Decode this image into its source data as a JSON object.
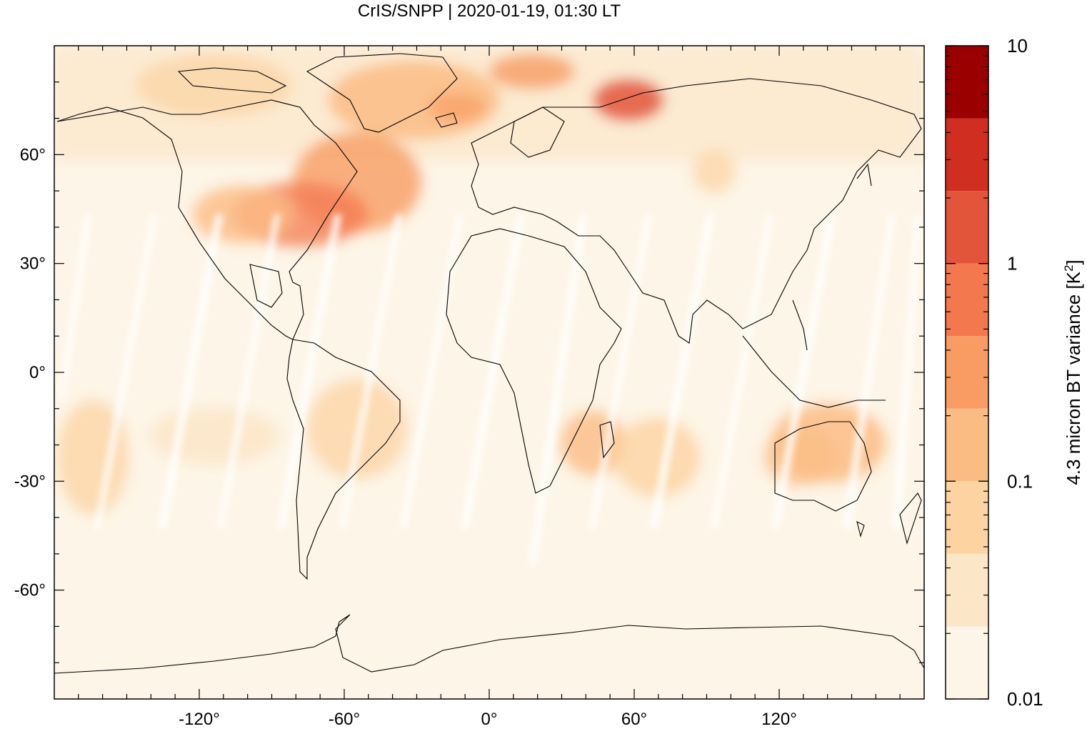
{
  "title": "CrIS/SNPP | 2020-01-19, 01:30 LT",
  "map": {
    "projection": "equirectangular",
    "lon_range": [
      -180,
      180
    ],
    "lat_range": [
      -90,
      90
    ],
    "x_ticks": [
      {
        "value": -120,
        "label": "-120°"
      },
      {
        "value": -60,
        "label": "-60°"
      },
      {
        "value": 0,
        "label": "0°"
      },
      {
        "value": 60,
        "label": "60°"
      },
      {
        "value": 120,
        "label": "120°"
      }
    ],
    "y_ticks": [
      {
        "value": 60,
        "label": "60°"
      },
      {
        "value": 30,
        "label": "30°"
      },
      {
        "value": 0,
        "label": "0°"
      },
      {
        "value": -30,
        "label": "-30°"
      },
      {
        "value": -60,
        "label": "-60°"
      }
    ]
  },
  "colorbar": {
    "label_main": "4.3 micron BT variance [K",
    "label_sup": "2",
    "label_end": "]",
    "scale": "log",
    "range": [
      0.01,
      10
    ],
    "tick_labels": [
      {
        "value": 10,
        "label": "10"
      },
      {
        "value": 1,
        "label": "1"
      },
      {
        "value": 0.1,
        "label": "0.1"
      },
      {
        "value": 0.01,
        "label": "0.01"
      }
    ],
    "colors": [
      "#fdf5e7",
      "#fbe6c7",
      "#fcd3a1",
      "#fbbc84",
      "#f89c63",
      "#f3784d",
      "#e3553b",
      "#cf2e20",
      "#9b0000"
    ]
  }
}
